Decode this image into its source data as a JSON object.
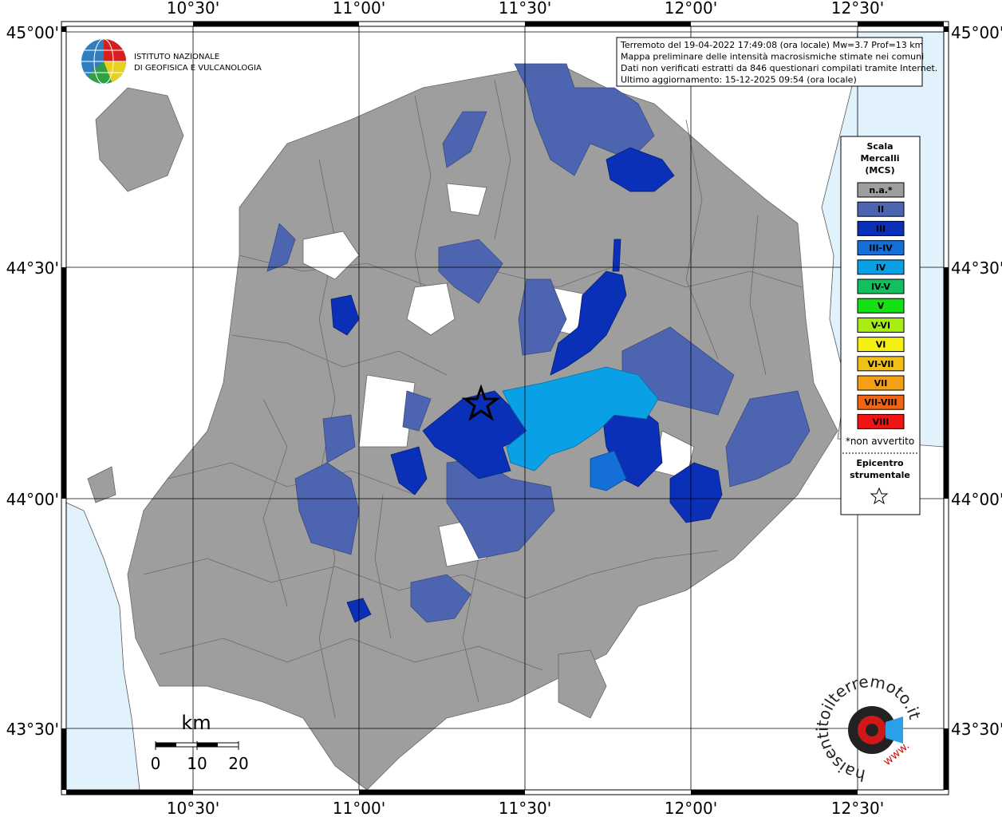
{
  "axes": {
    "top_labels": [
      "10°30'",
      "11°00'",
      "11°30'",
      "12°00'",
      "12°30'"
    ],
    "bottom_labels": [
      "10°30'",
      "11°00'",
      "11°30'",
      "12°00'",
      "12°30'"
    ],
    "left_labels": [
      "45°00'",
      "44°30'",
      "44°00'",
      "43°30'"
    ],
    "right_labels": [
      "45°00'",
      "44°30'",
      "44°00'",
      "43°30'"
    ]
  },
  "info_box": {
    "lines": [
      "Terremoto del 19-04-2022 17:49:08 (ora locale) Mw=3.7 Prof=13 km",
      "Mappa preliminare delle intensità macrosismiche stimate nei comuni",
      "Dati non verificati estratti da 846 questionari compilati tramite Internet.",
      "Ultimo aggiornamento: 15-12-2025 09:54 (ora locale)"
    ]
  },
  "logo": {
    "lines": [
      "ISTITUTO NAZIONALE",
      "DI GEOFISICA E VULCANOLOGIA"
    ]
  },
  "legend": {
    "title": [
      "Scala",
      "Mercalli",
      "(MCS)"
    ],
    "items": [
      {
        "label": "n.a.*",
        "color": "#9e9e9e"
      },
      {
        "label": "II",
        "color": "#4d65b0"
      },
      {
        "label": "III",
        "color": "#0a30b8"
      },
      {
        "label": "III-IV",
        "color": "#1470d8"
      },
      {
        "label": "IV",
        "color": "#0aa0e6"
      },
      {
        "label": "IV-V",
        "color": "#12c060"
      },
      {
        "label": "V",
        "color": "#14e014"
      },
      {
        "label": "V-VI",
        "color": "#a8ee14"
      },
      {
        "label": "VI",
        "color": "#f4f014"
      },
      {
        "label": "VI-VII",
        "color": "#f0c014"
      },
      {
        "label": "VII",
        "color": "#f4a014"
      },
      {
        "label": "VII-VIII",
        "color": "#f06414"
      },
      {
        "label": "VIII",
        "color": "#f01414"
      }
    ],
    "note": "*non avvertito",
    "epicenter_title": [
      "Epicentro",
      "strumentale"
    ]
  },
  "scale_bar": {
    "unit": "km",
    "ticks": [
      0,
      10,
      20
    ]
  },
  "brand": {
    "main": "haisentitoilterremoto.it",
    "prefix": "www."
  }
}
